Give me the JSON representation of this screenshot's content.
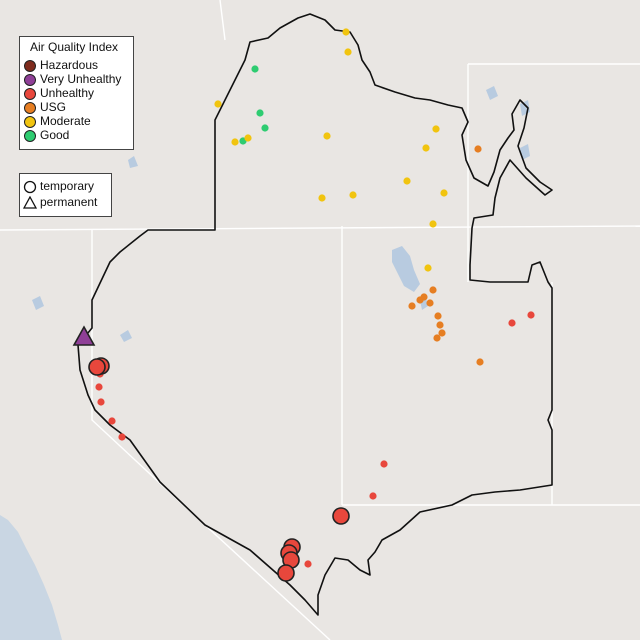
{
  "legend": {
    "title": "Air Quality Index",
    "categories": [
      {
        "label": "Hazardous",
        "color": "#7e2b1d"
      },
      {
        "label": "Very Unhealthy",
        "color": "#8f3f97"
      },
      {
        "label": "Unhealthy",
        "color": "#e8473c"
      },
      {
        "label": "USG",
        "color": "#e67e22"
      },
      {
        "label": "Moderate",
        "color": "#f1c40f"
      },
      {
        "label": "Good",
        "color": "#2ecc71"
      }
    ]
  },
  "type_legend": {
    "items": [
      {
        "label": "temporary",
        "shape": "circle"
      },
      {
        "label": "permanent",
        "shape": "triangle"
      }
    ]
  },
  "colors": {
    "background": "#e9e6e3",
    "ocean": "#c9d6e3",
    "lake": "#b8cbe0",
    "boundary": "#111111",
    "state_line": "#ffffff"
  },
  "monitors": [
    {
      "category": "Moderate",
      "size": "small",
      "shape": "circle"
    },
    {
      "category": "Moderate",
      "size": "small",
      "shape": "circle"
    },
    {
      "category": "Good",
      "size": "small",
      "shape": "circle"
    },
    {
      "category": "Moderate",
      "size": "small",
      "shape": "circle"
    },
    {
      "category": "Good",
      "size": "small",
      "shape": "circle"
    },
    {
      "category": "Good",
      "size": "small",
      "shape": "circle"
    },
    {
      "category": "Moderate",
      "size": "small",
      "shape": "circle"
    },
    {
      "category": "Good",
      "size": "small",
      "shape": "circle"
    },
    {
      "category": "Moderate",
      "size": "small",
      "shape": "circle"
    },
    {
      "category": "Moderate",
      "size": "small",
      "shape": "circle"
    },
    {
      "category": "Moderate",
      "size": "small",
      "shape": "circle"
    },
    {
      "category": "Moderate",
      "size": "small",
      "shape": "circle"
    },
    {
      "category": "Moderate",
      "size": "small",
      "shape": "circle"
    },
    {
      "category": "Moderate",
      "size": "small",
      "shape": "circle"
    },
    {
      "category": "Moderate",
      "size": "small",
      "shape": "circle"
    },
    {
      "category": "Moderate",
      "size": "small",
      "shape": "circle"
    },
    {
      "category": "Moderate",
      "size": "small",
      "shape": "circle"
    },
    {
      "category": "Moderate",
      "size": "small",
      "shape": "circle"
    },
    {
      "category": "USG",
      "size": "small",
      "shape": "circle"
    },
    {
      "category": "USG",
      "size": "small",
      "shape": "circle"
    },
    {
      "category": "USG",
      "size": "small",
      "shape": "circle"
    },
    {
      "category": "USG",
      "size": "small",
      "shape": "circle"
    },
    {
      "category": "USG",
      "size": "small",
      "shape": "circle"
    },
    {
      "category": "USG",
      "size": "small",
      "shape": "circle"
    },
    {
      "category": "USG",
      "size": "small",
      "shape": "circle"
    },
    {
      "category": "USG",
      "size": "small",
      "shape": "circle"
    },
    {
      "category": "USG",
      "size": "small",
      "shape": "circle"
    },
    {
      "category": "USG",
      "size": "small",
      "shape": "circle"
    },
    {
      "category": "USG",
      "size": "small",
      "shape": "circle"
    },
    {
      "category": "Unhealthy",
      "size": "small",
      "shape": "circle"
    },
    {
      "category": "Unhealthy",
      "size": "small",
      "shape": "circle"
    },
    {
      "category": "Unhealthy",
      "size": "small",
      "shape": "circle"
    },
    {
      "category": "Unhealthy",
      "size": "small",
      "shape": "circle"
    },
    {
      "category": "Unhealthy",
      "size": "small",
      "shape": "circle"
    },
    {
      "category": "Unhealthy",
      "size": "small",
      "shape": "circle"
    },
    {
      "category": "Unhealthy",
      "size": "small",
      "shape": "circle"
    },
    {
      "category": "Unhealthy",
      "size": "small",
      "shape": "circle"
    },
    {
      "category": "Unhealthy",
      "size": "small",
      "shape": "circle"
    },
    {
      "category": "Unhealthy",
      "size": "small",
      "shape": "circle"
    },
    {
      "category": "Unhealthy",
      "size": "large",
      "shape": "circle"
    },
    {
      "category": "Unhealthy",
      "size": "large",
      "shape": "circle"
    },
    {
      "category": "Unhealthy",
      "size": "large",
      "shape": "circle"
    },
    {
      "category": "Unhealthy",
      "size": "large",
      "shape": "circle"
    },
    {
      "category": "Unhealthy",
      "size": "large",
      "shape": "circle"
    },
    {
      "category": "Unhealthy",
      "size": "large",
      "shape": "circle"
    },
    {
      "category": "Unhealthy",
      "size": "large",
      "shape": "circle"
    },
    {
      "category": "Very Unhealthy",
      "size": "large",
      "shape": "triangle"
    }
  ]
}
